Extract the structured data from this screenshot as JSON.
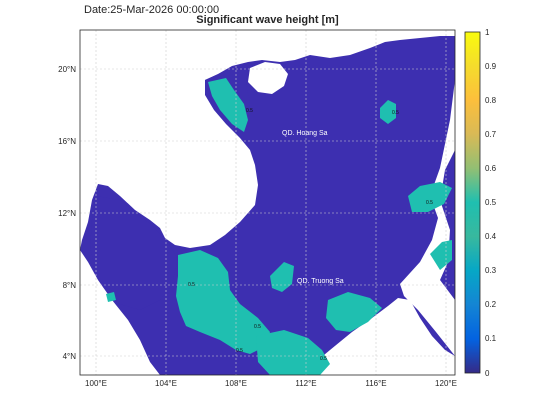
{
  "header": {
    "date_text": "Date:25-Mar-2026 00:00:00",
    "title": "Significant wave height [m]"
  },
  "map": {
    "x_ticks": [
      "100°E",
      "104°E",
      "108°E",
      "112°E",
      "116°E",
      "120°E"
    ],
    "y_ticks": [
      "20°N",
      "16°N",
      "12°N",
      "8°N",
      "4°N"
    ],
    "labels": {
      "hoang_sa": "QD. Hoang Sa",
      "truong_sa": "QD. Truong Sa"
    },
    "contour_label": "0.5",
    "colors": {
      "sea_low": "#3d2fb0",
      "sea_mid": "#1fbfb0",
      "land": "#ffffff",
      "grid": "#cfcfcf"
    }
  },
  "colorbar": {
    "ticks": [
      "1",
      "0.9",
      "0.8",
      "0.7",
      "0.6",
      "0.5",
      "0.4",
      "0.3",
      "0.2",
      "0.1",
      "0"
    ],
    "colormap": "parula"
  }
}
